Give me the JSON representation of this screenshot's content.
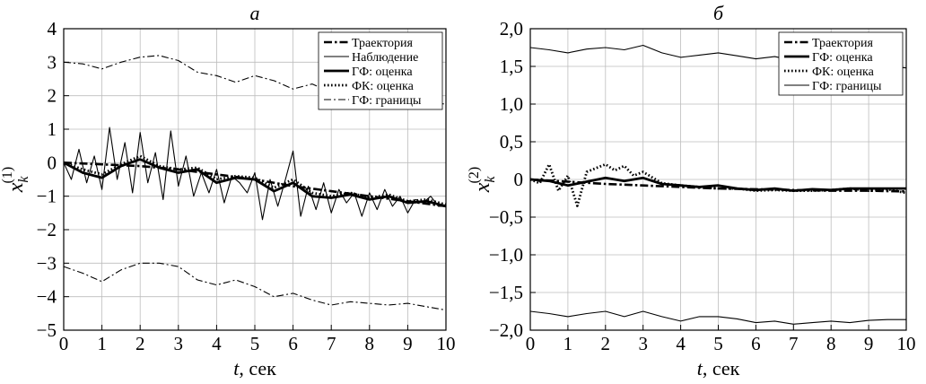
{
  "chart_data": [
    {
      "type": "line",
      "title": "а",
      "xlabel_var": "t",
      "xlabel_unit": ", сек",
      "ylabel_base": "x",
      "ylabel_sub": "k",
      "ylabel_sup": "(1)",
      "xlim": [
        0,
        10
      ],
      "ylim": [
        -5,
        4
      ],
      "xticks": [
        "0",
        "1",
        "2",
        "3",
        "4",
        "5",
        "6",
        "7",
        "8",
        "9",
        "10"
      ],
      "yticks": [
        "4",
        "3",
        "2",
        "1",
        "0",
        "−1",
        "−2",
        "−3",
        "−4",
        "−5"
      ],
      "ytick_values": [
        4,
        3,
        2,
        1,
        0,
        -1,
        -2,
        -3,
        -4,
        -5
      ],
      "grid": true,
      "legend_position": "top-right",
      "series": [
        {
          "name": "Траектория",
          "style": "dashdot-thick",
          "x": [
            0,
            1,
            2,
            3,
            4,
            5,
            6,
            7,
            8,
            9,
            10
          ],
          "y": [
            0,
            -0.05,
            -0.1,
            -0.2,
            -0.35,
            -0.5,
            -0.7,
            -0.85,
            -1.0,
            -1.15,
            -1.3
          ]
        },
        {
          "name": "Наблюдение",
          "style": "solid-thin",
          "x": [
            0,
            0.2,
            0.4,
            0.6,
            0.8,
            1.0,
            1.2,
            1.4,
            1.6,
            1.8,
            2.0,
            2.2,
            2.4,
            2.6,
            2.8,
            3.0,
            3.2,
            3.4,
            3.6,
            3.8,
            4.0,
            4.2,
            4.4,
            4.6,
            4.8,
            5.0,
            5.2,
            5.4,
            5.6,
            5.8,
            6.0,
            6.2,
            6.4,
            6.6,
            6.8,
            7.0,
            7.2,
            7.4,
            7.6,
            7.8,
            8.0,
            8.2,
            8.4,
            8.6,
            8.8,
            9.0,
            9.2,
            9.4,
            9.6,
            9.8,
            10.0
          ],
          "y": [
            0,
            -0.5,
            0.4,
            -0.6,
            0.2,
            -0.8,
            1.05,
            -0.5,
            0.6,
            -0.9,
            0.9,
            -0.6,
            0.3,
            -1.1,
            0.95,
            -0.7,
            0.2,
            -1.0,
            -0.3,
            -0.9,
            -0.2,
            -1.2,
            -0.4,
            -0.6,
            -0.9,
            -0.3,
            -1.7,
            -0.5,
            -1.3,
            -0.5,
            0.35,
            -1.6,
            -0.7,
            -1.4,
            -0.6,
            -1.5,
            -0.8,
            -1.2,
            -0.9,
            -1.6,
            -0.9,
            -1.4,
            -0.8,
            -1.3,
            -1.0,
            -1.5,
            -1.1,
            -1.2,
            -1.0,
            -1.3,
            -1.3
          ]
        },
        {
          "name": "ГФ: оценка",
          "style": "solid-thick",
          "x": [
            0,
            0.5,
            1.0,
            1.5,
            2.0,
            2.5,
            3.0,
            3.5,
            4.0,
            4.5,
            5.0,
            5.5,
            6.0,
            6.5,
            7.0,
            7.5,
            8.0,
            8.5,
            9.0,
            9.5,
            10.0
          ],
          "y": [
            0,
            -0.3,
            -0.45,
            -0.1,
            0.1,
            -0.15,
            -0.3,
            -0.2,
            -0.6,
            -0.45,
            -0.5,
            -0.85,
            -0.6,
            -1.0,
            -1.05,
            -0.95,
            -1.1,
            -1.0,
            -1.2,
            -1.15,
            -1.3
          ]
        },
        {
          "name": "ФК: оценка",
          "style": "dotted-thick",
          "x": [
            0,
            0.5,
            1.0,
            1.5,
            2.0,
            2.5,
            3.0,
            3.5,
            4.0,
            4.5,
            5.0,
            5.5,
            6.0,
            6.5,
            7.0,
            7.5,
            8.0,
            8.5,
            9.0,
            9.5,
            10.0
          ],
          "y": [
            0,
            -0.2,
            -0.35,
            -0.05,
            0.2,
            -0.1,
            -0.2,
            -0.15,
            -0.5,
            -0.4,
            -0.45,
            -0.75,
            -0.5,
            -0.9,
            -1.0,
            -0.9,
            -1.05,
            -0.95,
            -1.15,
            -1.1,
            -1.25
          ]
        },
        {
          "name": "ГФ: границы",
          "style": "dashdot-thin",
          "x": [
            0,
            0.5,
            1.0,
            1.5,
            2.0,
            2.5,
            3.0,
            3.5,
            4.0,
            4.5,
            5.0,
            5.5,
            6.0,
            6.5,
            7.0,
            7.5,
            8.0,
            8.5,
            9.0,
            9.5,
            10.0
          ],
          "y": [
            3.0,
            2.95,
            2.8,
            3.0,
            3.15,
            3.2,
            3.05,
            2.7,
            2.6,
            2.4,
            2.6,
            2.45,
            2.2,
            2.35,
            2.1,
            2.0,
            2.0,
            1.9,
            1.85,
            1.8,
            1.75
          ]
        },
        {
          "name": "",
          "style": "dashdot-thin",
          "x": [
            0,
            0.5,
            1.0,
            1.5,
            2.0,
            2.5,
            3.0,
            3.5,
            4.0,
            4.5,
            5.0,
            5.5,
            6.0,
            6.5,
            7.0,
            7.5,
            8.0,
            8.5,
            9.0,
            9.5,
            10.0
          ],
          "y": [
            -3.1,
            -3.3,
            -3.55,
            -3.2,
            -3.0,
            -3.0,
            -3.1,
            -3.5,
            -3.65,
            -3.5,
            -3.7,
            -4.0,
            -3.9,
            -4.1,
            -4.25,
            -4.15,
            -4.2,
            -4.25,
            -4.2,
            -4.3,
            -4.4
          ]
        }
      ]
    },
    {
      "type": "line",
      "title": "б",
      "xlabel_var": "t",
      "xlabel_unit": ", сек",
      "ylabel_base": "x",
      "ylabel_sub": "k",
      "ylabel_sup": "(2)",
      "xlim": [
        0,
        10
      ],
      "ylim": [
        -2.0,
        2.0
      ],
      "xticks": [
        "0",
        "1",
        "2",
        "3",
        "4",
        "5",
        "6",
        "7",
        "8",
        "9",
        "10"
      ],
      "yticks": [
        "2,0",
        "1,5",
        "1,0",
        "0,5",
        "0",
        "−0,5",
        "−1,0",
        "−1,5",
        "−2,0"
      ],
      "ytick_values": [
        2.0,
        1.5,
        1.0,
        0.5,
        0,
        -0.5,
        -1.0,
        -1.5,
        -2.0
      ],
      "grid": true,
      "legend_position": "top-right",
      "series": [
        {
          "name": "Траектория",
          "style": "dashdot-thick",
          "x": [
            0,
            1,
            2,
            3,
            4,
            5,
            6,
            7,
            8,
            9,
            10
          ],
          "y": [
            0,
            -0.03,
            -0.06,
            -0.08,
            -0.1,
            -0.12,
            -0.13,
            -0.14,
            -0.15,
            -0.15,
            -0.16
          ]
        },
        {
          "name": "ГФ: оценка",
          "style": "solid-thick",
          "x": [
            0,
            0.5,
            1.0,
            1.5,
            2.0,
            2.5,
            3.0,
            3.5,
            4.0,
            4.5,
            5.0,
            5.5,
            6.0,
            6.5,
            7.0,
            7.5,
            8.0,
            8.5,
            9.0,
            9.5,
            10.0
          ],
          "y": [
            0,
            -0.02,
            -0.08,
            -0.03,
            0.02,
            -0.02,
            0.02,
            -0.06,
            -0.08,
            -0.1,
            -0.08,
            -0.12,
            -0.14,
            -0.12,
            -0.15,
            -0.13,
            -0.14,
            -0.12,
            -0.12,
            -0.12,
            -0.12
          ]
        },
        {
          "name": "ФК: оценка",
          "style": "dotted-thick",
          "x": [
            0,
            0.25,
            0.5,
            0.75,
            1.0,
            1.25,
            1.5,
            1.75,
            2.0,
            2.25,
            2.5,
            2.75,
            3.0,
            3.5,
            4.0,
            4.5,
            5.0,
            5.5,
            6.0,
            6.5,
            7.0,
            7.5,
            8.0,
            8.5,
            9.0,
            9.5,
            10.0
          ],
          "y": [
            0,
            -0.05,
            0.2,
            -0.15,
            0.05,
            -0.35,
            0.1,
            0.15,
            0.2,
            0.12,
            0.18,
            0.05,
            0.1,
            -0.05,
            -0.08,
            -0.1,
            -0.12,
            -0.12,
            -0.15,
            -0.14,
            -0.15,
            -0.15,
            -0.14,
            -0.12,
            -0.15,
            -0.13,
            -0.18
          ]
        },
        {
          "name": "ГФ: границы",
          "style": "solid-thin",
          "x": [
            0,
            0.5,
            1.0,
            1.5,
            2.0,
            2.5,
            3.0,
            3.5,
            4.0,
            4.5,
            5.0,
            5.5,
            6.0,
            6.5,
            7.0,
            7.5,
            8.0,
            8.5,
            9.0,
            9.5,
            10.0
          ],
          "y": [
            1.75,
            1.72,
            1.68,
            1.73,
            1.75,
            1.72,
            1.78,
            1.68,
            1.62,
            1.65,
            1.68,
            1.64,
            1.6,
            1.63,
            1.58,
            1.55,
            1.55,
            1.52,
            1.52,
            1.5,
            1.48
          ]
        },
        {
          "name": "",
          "style": "solid-thin",
          "x": [
            0,
            0.5,
            1.0,
            1.5,
            2.0,
            2.5,
            3.0,
            3.5,
            4.0,
            4.5,
            5.0,
            5.5,
            6.0,
            6.5,
            7.0,
            7.5,
            8.0,
            8.5,
            9.0,
            9.5,
            10.0
          ],
          "y": [
            -1.75,
            -1.78,
            -1.82,
            -1.78,
            -1.75,
            -1.82,
            -1.75,
            -1.82,
            -1.88,
            -1.82,
            -1.82,
            -1.85,
            -1.9,
            -1.88,
            -1.92,
            -1.9,
            -1.88,
            -1.9,
            -1.87,
            -1.86,
            -1.86
          ]
        }
      ]
    }
  ]
}
